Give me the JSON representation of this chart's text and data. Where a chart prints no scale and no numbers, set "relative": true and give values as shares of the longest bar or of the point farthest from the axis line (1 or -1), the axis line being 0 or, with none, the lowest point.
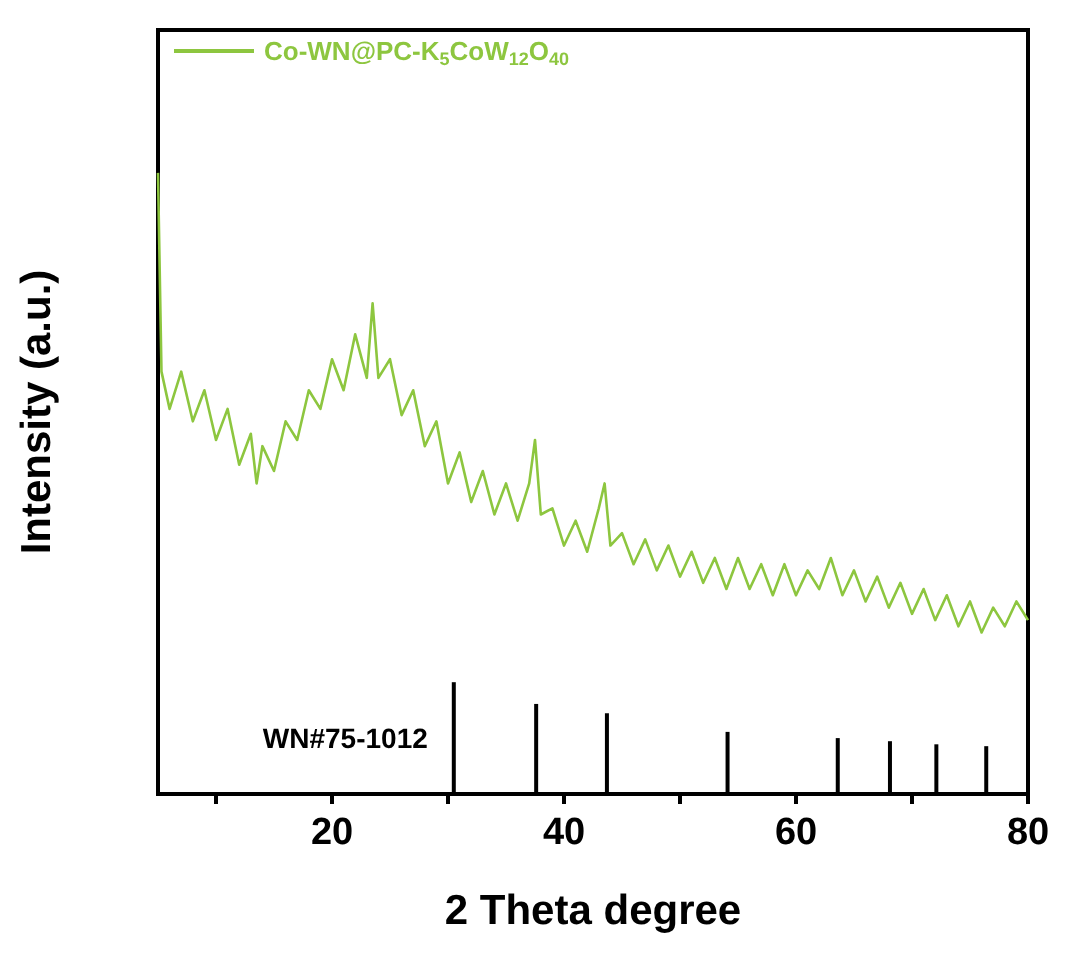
{
  "chart_data": {
    "type": "line",
    "xlabel": "2 Theta degree",
    "ylabel": "Intensity (a.u.)",
    "relative": true,
    "xlim": [
      5,
      80
    ],
    "xticks": [
      {
        "value": 10,
        "label": null
      },
      20,
      {
        "value": 30,
        "label": null
      },
      40,
      {
        "value": 50,
        "label": null
      },
      60,
      {
        "value": 70,
        "label": null
      },
      80
    ],
    "legend": "top left",
    "grid": false,
    "marker": "none",
    "series": [
      {
        "name": "Co-WN@PC-K$_{5}$CoW$_{12}$O$_{40}$",
        "color": "#8dc63f",
        "x": [
          5,
          5.3,
          6,
          7,
          8,
          9,
          10,
          11,
          12,
          13,
          13.5,
          14,
          15,
          16,
          17,
          18,
          19,
          20,
          21,
          22,
          23,
          23.5,
          24,
          25,
          26,
          27,
          28,
          29,
          30,
          31,
          32,
          33,
          34,
          35,
          36,
          37,
          37.5,
          38,
          39,
          40,
          41,
          42,
          43,
          43.5,
          44,
          45,
          46,
          47,
          48,
          49,
          50,
          51,
          52,
          53,
          54,
          55,
          56,
          57,
          58,
          59,
          60,
          61,
          62,
          63,
          64,
          65,
          66,
          67,
          68,
          69,
          70,
          71,
          72,
          73,
          74,
          75,
          76,
          77,
          78,
          79,
          80
        ],
        "values": [
          1.0,
          0.68,
          0.62,
          0.68,
          0.6,
          0.65,
          0.57,
          0.62,
          0.53,
          0.58,
          0.5,
          0.56,
          0.52,
          0.6,
          0.57,
          0.65,
          0.62,
          0.7,
          0.65,
          0.74,
          0.67,
          0.79,
          0.67,
          0.7,
          0.61,
          0.65,
          0.56,
          0.6,
          0.5,
          0.55,
          0.47,
          0.52,
          0.45,
          0.5,
          0.44,
          0.5,
          0.57,
          0.45,
          0.46,
          0.4,
          0.44,
          0.39,
          0.46,
          0.5,
          0.4,
          0.42,
          0.37,
          0.41,
          0.36,
          0.4,
          0.35,
          0.39,
          0.34,
          0.38,
          0.33,
          0.38,
          0.33,
          0.37,
          0.32,
          0.37,
          0.32,
          0.36,
          0.33,
          0.38,
          0.32,
          0.36,
          0.31,
          0.35,
          0.3,
          0.34,
          0.29,
          0.33,
          0.28,
          0.32,
          0.27,
          0.31,
          0.26,
          0.3,
          0.27,
          0.31,
          0.28
        ]
      },
      {
        "name": "WN#75-1012",
        "type": "bar",
        "color": "#000000",
        "x": [
          30.5,
          37.6,
          43.7,
          54.1,
          63.6,
          68.1,
          72.1,
          76.4
        ],
        "values": [
          0.18,
          0.145,
          0.13,
          0.1,
          0.09,
          0.085,
          0.08,
          0.077
        ]
      }
    ]
  }
}
